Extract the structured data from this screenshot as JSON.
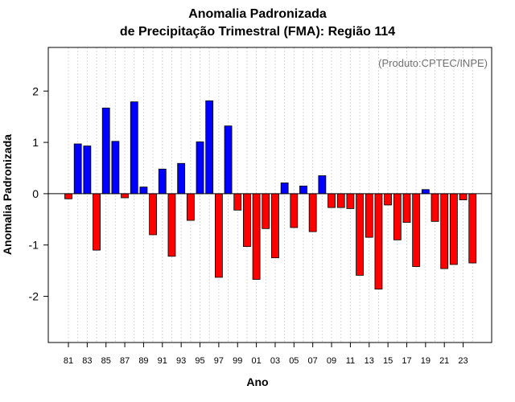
{
  "chart_data": {
    "type": "bar",
    "title": "Anomalia Padronizada",
    "subtitle": "de Precipitação Trimestral (FMA): Região 114",
    "xlabel": "Ano",
    "ylabel": "Anomalia Padronizada",
    "credit": "(Produto:CPTEC/INPE)",
    "ylim": [
      -2.9,
      2.85
    ],
    "yticks": [
      -2,
      -1,
      0,
      1,
      2
    ],
    "xtick_labels": [
      "81",
      "83",
      "85",
      "87",
      "89",
      "91",
      "93",
      "95",
      "97",
      "99",
      "01",
      "03",
      "05",
      "07",
      "09",
      "11",
      "13",
      "15",
      "17",
      "19",
      "21",
      "23"
    ],
    "categories": [
      "1981",
      "1982",
      "1983",
      "1984",
      "1985",
      "1986",
      "1987",
      "1988",
      "1989",
      "1990",
      "1991",
      "1992",
      "1993",
      "1994",
      "1995",
      "1996",
      "1997",
      "1998",
      "1999",
      "2000",
      "2001",
      "2002",
      "2003",
      "2004",
      "2005",
      "2006",
      "2007",
      "2008",
      "2009",
      "2010",
      "2011",
      "2012",
      "2013",
      "2014",
      "2015",
      "2016",
      "2017",
      "2018",
      "2019",
      "2020",
      "2021",
      "2022",
      "2023",
      "2024"
    ],
    "values": [
      -0.1,
      0.97,
      0.93,
      -1.1,
      1.67,
      1.02,
      -0.08,
      1.79,
      0.13,
      -0.8,
      0.48,
      -1.22,
      0.59,
      -0.52,
      1.01,
      1.81,
      -1.63,
      1.32,
      -0.32,
      -1.03,
      -1.67,
      -0.68,
      -1.25,
      0.21,
      -0.66,
      0.15,
      -0.74,
      0.35,
      -0.27,
      -0.27,
      -0.29,
      -1.59,
      -0.85,
      -1.86,
      -0.22,
      -0.9,
      -0.56,
      -1.42,
      0.08,
      -0.54,
      -1.46,
      -1.38,
      -0.12,
      -1.35
    ],
    "positive_color": "#0000ff",
    "negative_color": "#ff0000",
    "grid": true,
    "legend": "none"
  }
}
